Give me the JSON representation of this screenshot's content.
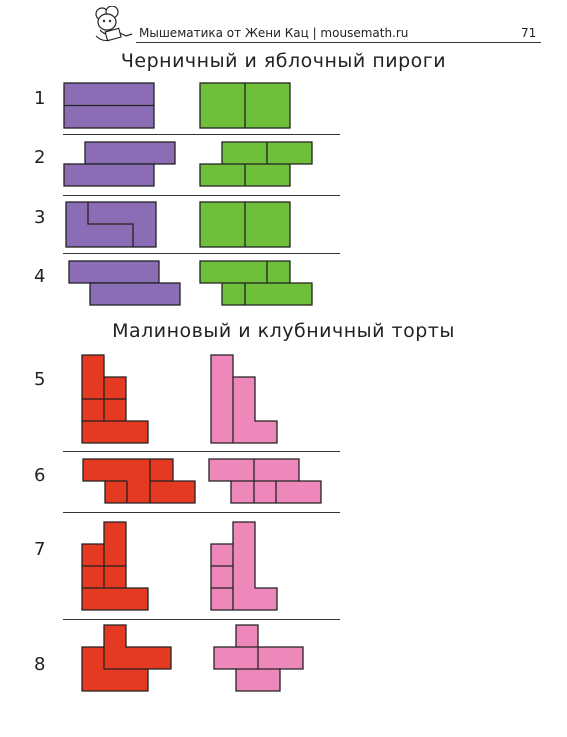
{
  "header": {
    "text": "Мышематика от Жени Кац   |   mousemath.ru",
    "page_number": "71"
  },
  "section1": {
    "title": "Черничный  и  яблочный  пироги",
    "rows": [
      {
        "label": "1"
      },
      {
        "label": "2"
      },
      {
        "label": "3"
      },
      {
        "label": "4"
      }
    ]
  },
  "section2": {
    "title": "Малиновый  и  клубничный  торты",
    "rows": [
      {
        "label": "5"
      },
      {
        "label": "6"
      },
      {
        "label": "7"
      },
      {
        "label": "8"
      }
    ]
  },
  "colors": {
    "blueberry": "#8b6db5",
    "apple": "#6fbf3a",
    "raspberry": "#e53a22",
    "strawberry": "#ee88bb",
    "outline": "#222222"
  }
}
